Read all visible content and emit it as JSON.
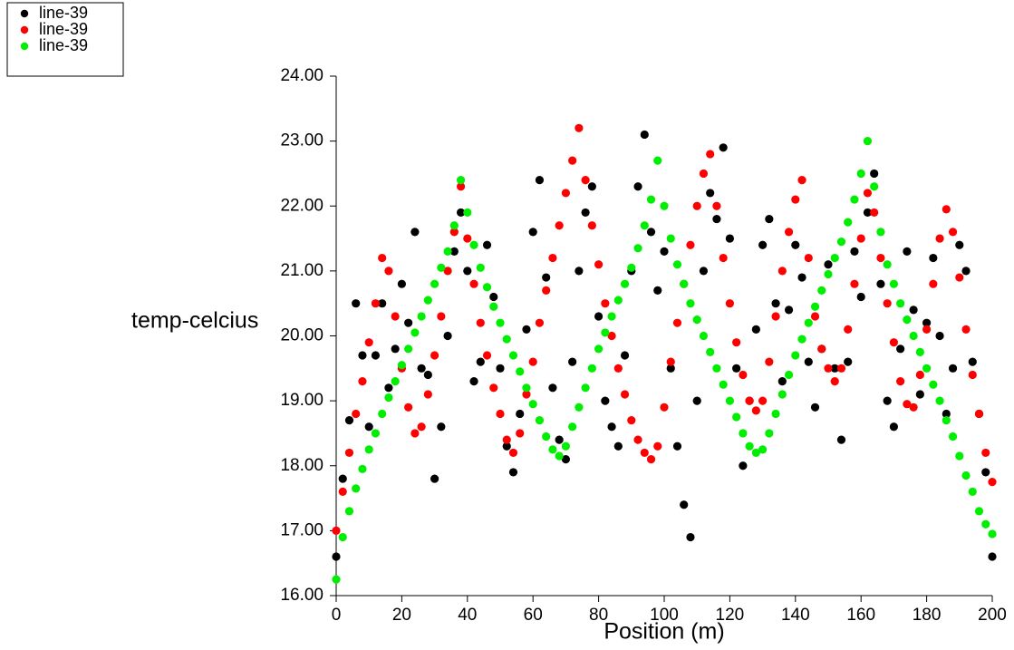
{
  "chart_data": {
    "type": "scatter",
    "x_label": "Position (m)",
    "y_label": "temp-celcius",
    "x": [
      0,
      2,
      4,
      6,
      8,
      10,
      12,
      14,
      16,
      18,
      20,
      22,
      24,
      26,
      28,
      30,
      32,
      34,
      36,
      38,
      40,
      42,
      44,
      46,
      48,
      50,
      52,
      54,
      56,
      58,
      60,
      62,
      64,
      66,
      68,
      70,
      72,
      74,
      76,
      78,
      80,
      82,
      84,
      86,
      88,
      90,
      92,
      94,
      96,
      98,
      100,
      102,
      104,
      106,
      108,
      110,
      112,
      114,
      116,
      118,
      120,
      122,
      124,
      126,
      128,
      130,
      132,
      134,
      136,
      138,
      140,
      142,
      144,
      146,
      148,
      150,
      152,
      154,
      156,
      158,
      160,
      162,
      164,
      166,
      168,
      170,
      172,
      174,
      176,
      178,
      180,
      182,
      184,
      186,
      188,
      190,
      192,
      194,
      196,
      198,
      200
    ],
    "series": [
      {
        "name": "line-39",
        "color": "#000000",
        "values": [
          16.6,
          17.8,
          18.7,
          20.5,
          19.7,
          18.6,
          19.7,
          20.5,
          19.2,
          19.8,
          20.8,
          20.2,
          21.6,
          19.5,
          19.4,
          17.8,
          18.6,
          20.0,
          21.3,
          21.9,
          21.0,
          19.3,
          19.6,
          21.4,
          20.6,
          19.5,
          18.3,
          17.9,
          18.8,
          20.1,
          21.6,
          22.4,
          20.9,
          19.2,
          18.4,
          18.1,
          19.6,
          21.0,
          21.9,
          22.3,
          20.3,
          19.0,
          18.6,
          18.3,
          19.7,
          21.0,
          22.3,
          23.1,
          21.6,
          20.7,
          21.3,
          19.5,
          18.3,
          17.4,
          16.9,
          19.0,
          21.0,
          22.2,
          21.8,
          22.9,
          21.5,
          19.5,
          18.0,
          19.0,
          20.1,
          21.4,
          21.8,
          20.5,
          19.3,
          20.4,
          21.4,
          20.9,
          19.6,
          18.9,
          19.8,
          21.1,
          19.5,
          18.4,
          19.6,
          21.3,
          20.6,
          21.9,
          22.5,
          20.8,
          19.0,
          18.6,
          19.8,
          21.3,
          20.4,
          19.1,
          20.2,
          21.2,
          20.0,
          18.8,
          19.5,
          21.4,
          21.0,
          19.6,
          18.8,
          17.9,
          16.6
        ]
      },
      {
        "name": "line-39",
        "color": "#ff0000",
        "values": [
          17.0,
          17.6,
          18.2,
          18.8,
          19.3,
          19.9,
          20.5,
          21.2,
          21.0,
          20.3,
          19.5,
          18.9,
          18.5,
          18.6,
          19.1,
          19.7,
          20.3,
          21.0,
          21.6,
          22.3,
          21.5,
          20.8,
          20.2,
          19.7,
          19.2,
          18.8,
          18.4,
          18.2,
          18.5,
          19.1,
          19.6,
          20.2,
          20.7,
          21.2,
          21.7,
          22.2,
          22.7,
          23.2,
          22.4,
          21.7,
          21.1,
          20.5,
          20.0,
          19.5,
          19.1,
          18.7,
          18.4,
          18.2,
          18.1,
          18.3,
          18.9,
          19.6,
          20.2,
          20.8,
          21.4,
          22.0,
          22.5,
          22.8,
          22.0,
          21.2,
          20.5,
          19.9,
          19.4,
          19.0,
          18.85,
          19.0,
          19.6,
          20.3,
          21.0,
          21.6,
          22.1,
          22.4,
          21.2,
          20.3,
          19.8,
          19.5,
          19.3,
          19.5,
          20.1,
          20.8,
          21.5,
          22.2,
          21.9,
          21.2,
          20.5,
          19.9,
          19.3,
          18.95,
          18.9,
          19.4,
          20.1,
          20.8,
          21.5,
          21.95,
          21.6,
          20.9,
          20.1,
          19.4,
          18.8,
          18.2,
          17.75
        ]
      },
      {
        "name": "line-39",
        "color": "#00ee00",
        "values": [
          16.25,
          16.9,
          17.3,
          17.65,
          17.95,
          18.25,
          18.5,
          18.8,
          19.05,
          19.3,
          19.55,
          19.8,
          20.05,
          20.3,
          20.55,
          20.8,
          21.05,
          21.3,
          21.7,
          22.4,
          21.9,
          21.4,
          21.05,
          20.75,
          20.45,
          20.2,
          19.95,
          19.7,
          19.45,
          19.2,
          18.95,
          18.7,
          18.45,
          18.25,
          18.15,
          18.3,
          18.6,
          18.9,
          19.2,
          19.5,
          19.8,
          20.05,
          20.3,
          20.55,
          20.8,
          21.05,
          21.35,
          21.7,
          22.1,
          22.7,
          22.0,
          21.5,
          21.1,
          20.8,
          20.5,
          20.25,
          20.0,
          19.75,
          19.5,
          19.25,
          19.0,
          18.75,
          18.5,
          18.3,
          18.2,
          18.25,
          18.5,
          18.8,
          19.1,
          19.4,
          19.7,
          19.95,
          20.2,
          20.45,
          20.7,
          20.95,
          21.2,
          21.45,
          21.75,
          22.1,
          22.5,
          23.0,
          22.3,
          21.6,
          21.1,
          20.8,
          20.5,
          20.25,
          20.0,
          19.75,
          19.5,
          19.25,
          19.0,
          18.7,
          18.45,
          18.15,
          17.85,
          17.6,
          17.3,
          17.1,
          16.95
        ]
      }
    ],
    "xlim": [
      0,
      200
    ],
    "xticks": [
      0,
      20,
      40,
      60,
      80,
      100,
      120,
      140,
      160,
      180,
      200
    ],
    "ylim": [
      16,
      24
    ],
    "yticks": [
      {
        "value": 16,
        "label": "16.00"
      },
      {
        "value": 17,
        "label": "17.00"
      },
      {
        "value": 18,
        "label": "18.00"
      },
      {
        "value": 19,
        "label": "19.00"
      },
      {
        "value": 20,
        "label": "20.00"
      },
      {
        "value": 21,
        "label": "21.00"
      },
      {
        "value": 22,
        "label": "22.00"
      },
      {
        "value": 23,
        "label": "23.00"
      },
      {
        "value": 24,
        "label": "24.00"
      }
    ],
    "legend": "top-left"
  }
}
